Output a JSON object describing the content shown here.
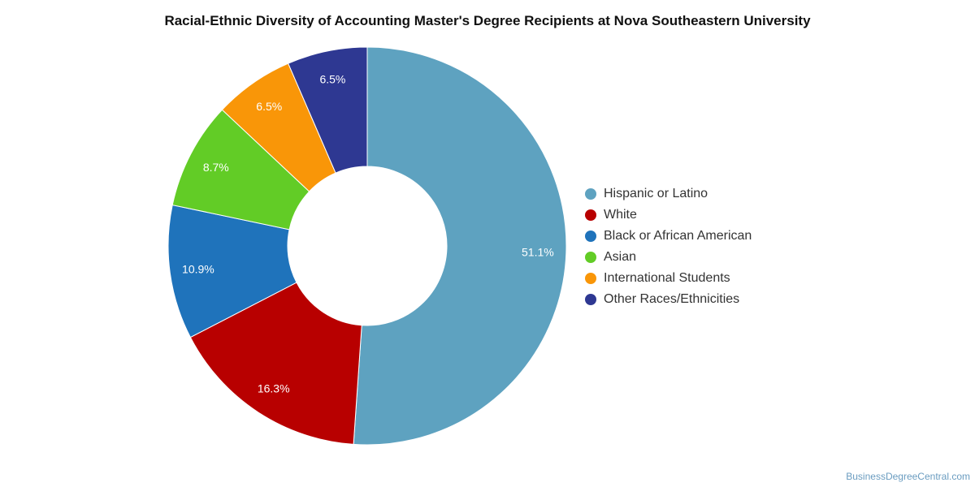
{
  "chart_data": {
    "type": "pie",
    "title": "Racial-Ethnic Diversity of Accounting Master's Degree Recipients at Nova Southeastern University",
    "categories": [
      "Hispanic or Latino",
      "White",
      "Black or African American",
      "Asian",
      "International Students",
      "Other Races/Ethnicities"
    ],
    "values": [
      51.1,
      16.3,
      10.9,
      8.7,
      6.5,
      6.5
    ],
    "data_labels": [
      "51.1%",
      "16.3%",
      "10.9%",
      "8.7%",
      "6.5%",
      "6.5%"
    ],
    "colors": [
      "#5ea2c0",
      "#b80000",
      "#1f73bb",
      "#62cc26",
      "#f99608",
      "#2e3892"
    ],
    "legend_position": "right",
    "donut": true
  },
  "footer": {
    "source": "BusinessDegreeCentral.com"
  }
}
